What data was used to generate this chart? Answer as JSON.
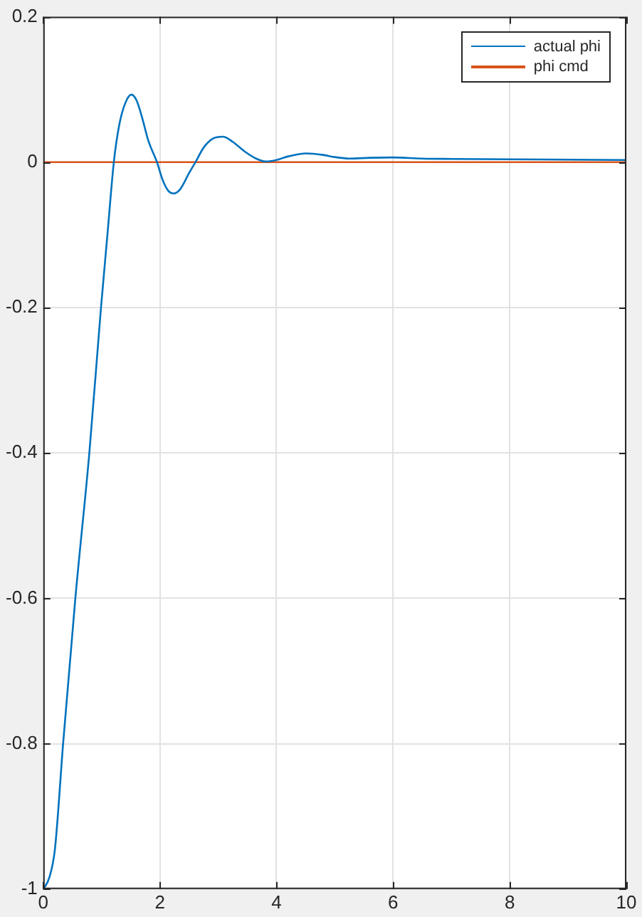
{
  "chart_data": {
    "type": "line",
    "xlim": [
      0,
      10
    ],
    "xticks": [
      0,
      2,
      4,
      6,
      8,
      10
    ],
    "ylim": [
      -1,
      0.2
    ],
    "yticks": [
      -1,
      -0.8,
      -0.6,
      -0.4,
      -0.2,
      0,
      0.2
    ],
    "grid": true,
    "legend": "top right",
    "marker": "none",
    "line_style": "solid",
    "series": [
      {
        "name": "actual phi",
        "color": "#0072bd",
        "x": [
          0,
          0.1,
          0.2,
          0.34,
          0.55,
          0.79,
          0.99,
          1.1,
          1.21,
          1.3,
          1.4,
          1.51,
          1.6,
          1.7,
          1.8,
          1.95,
          2.05,
          2.15,
          2.24,
          2.35,
          2.5,
          2.61,
          2.75,
          2.9,
          3.08,
          3.25,
          3.45,
          3.65,
          3.82,
          4.0,
          4.2,
          4.51,
          4.8,
          5.0,
          5.25,
          5.6,
          5.99,
          6.5,
          7,
          8,
          9,
          10
        ],
        "values": [
          -1,
          -0.985,
          -0.945,
          -0.8,
          -0.6,
          -0.4,
          -0.2,
          -0.1,
          0,
          0.05,
          0.08,
          0.093,
          0.085,
          0.06,
          0.03,
          0,
          -0.025,
          -0.04,
          -0.043,
          -0.037,
          -0.015,
          0,
          0.02,
          0.032,
          0.035,
          0.028,
          0.015,
          0.005,
          0.001,
          0.003,
          0.008,
          0.012,
          0.01,
          0.007,
          0.005,
          0.006,
          0.0065,
          0.005,
          0.0045,
          0.004,
          0.0035,
          0.003
        ]
      },
      {
        "name": "phi cmd",
        "color": "#d95319",
        "x": [
          0,
          10
        ],
        "values": [
          0,
          0
        ]
      }
    ]
  }
}
